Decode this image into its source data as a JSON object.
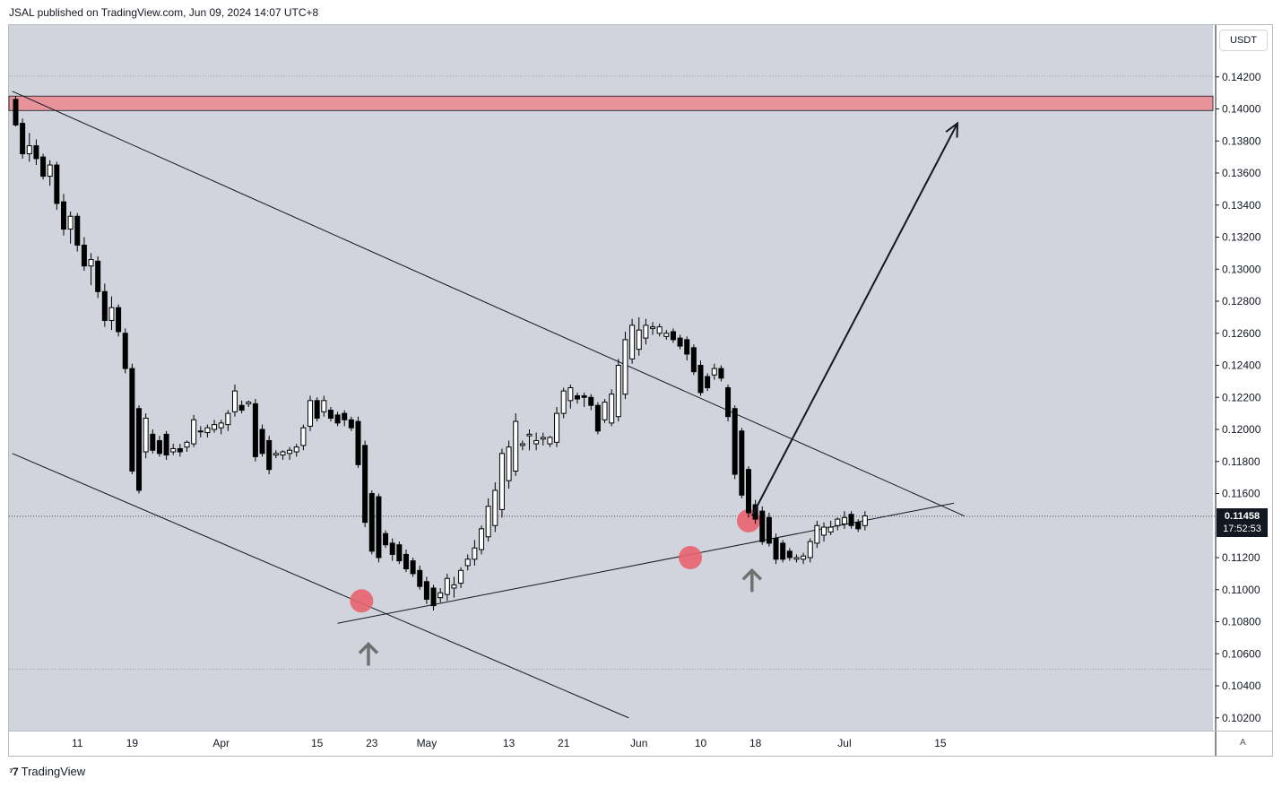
{
  "header": {
    "text": "JSAL published on TradingView.com, Jun 09, 2024 14:07 UTC+8"
  },
  "brand": {
    "icon": "tradingview-logo-icon",
    "text": "TradingView"
  },
  "axis": {
    "currency": "USDT",
    "last_price": "0.11458",
    "countdown": "17:52:53",
    "auto_label": "A"
  },
  "colors": {
    "background": "#d1d4dc",
    "resistance_zone": "#e8939a",
    "marker": "#e8636f",
    "candle_up": "#ffffff",
    "candle_down": "#000000",
    "arrow_up": "#707070"
  },
  "chart_data": {
    "type": "candlestick",
    "title": "",
    "ylim": [
      0.101,
      0.1452
    ],
    "y_ticks": [
      "0.14200",
      "0.14000",
      "0.13800",
      "0.13600",
      "0.13400",
      "0.13200",
      "0.13000",
      "0.12800",
      "0.12600",
      "0.12400",
      "0.12200",
      "0.12000",
      "0.11800",
      "0.11600",
      "0.11200",
      "0.11000",
      "0.10800",
      "0.10600",
      "0.10400",
      "0.10200"
    ],
    "x_ticks": [
      {
        "label": "11",
        "day": 9
      },
      {
        "label": "19",
        "day": 17
      },
      {
        "label": "Apr",
        "day": 30
      },
      {
        "label": "15",
        "day": 44
      },
      {
        "label": "23",
        "day": 52
      },
      {
        "label": "May",
        "day": 60
      },
      {
        "label": "13",
        "day": 72
      },
      {
        "label": "21",
        "day": 80
      },
      {
        "label": "Jun",
        "day": 91
      },
      {
        "label": "10",
        "day": 100
      },
      {
        "label": "18",
        "day": 108
      },
      {
        "label": "Jul",
        "day": 121
      },
      {
        "label": "15",
        "day": 135
      }
    ],
    "candles": [
      [
        0.1406,
        0.1408,
        0.1389,
        0.139
      ],
      [
        0.1391,
        0.1394,
        0.1369,
        0.1372
      ],
      [
        0.1372,
        0.1385,
        0.1367,
        0.1377
      ],
      [
        0.1377,
        0.1381,
        0.1365,
        0.1369
      ],
      [
        0.137,
        0.1372,
        0.1356,
        0.1358
      ],
      [
        0.1358,
        0.1368,
        0.1352,
        0.1365
      ],
      [
        0.1365,
        0.1367,
        0.1337,
        0.1341
      ],
      [
        0.1342,
        0.1347,
        0.1321,
        0.1325
      ],
      [
        0.1325,
        0.1336,
        0.1316,
        0.1333
      ],
      [
        0.1333,
        0.1335,
        0.1311,
        0.1315
      ],
      [
        0.1315,
        0.132,
        0.1299,
        0.1302
      ],
      [
        0.1302,
        0.131,
        0.129,
        0.1306
      ],
      [
        0.1305,
        0.1308,
        0.1282,
        0.1286
      ],
      [
        0.1286,
        0.1291,
        0.1264,
        0.1268
      ],
      [
        0.1268,
        0.1283,
        0.1262,
        0.1276
      ],
      [
        0.1276,
        0.1278,
        0.1258,
        0.1261
      ],
      [
        0.126,
        0.1263,
        0.1235,
        0.1238
      ],
      [
        0.1238,
        0.1241,
        0.1172,
        0.1174
      ],
      [
        0.1213,
        0.1215,
        0.116,
        0.1162
      ],
      [
        0.1186,
        0.121,
        0.1182,
        0.1207
      ],
      [
        0.1197,
        0.12,
        0.1185,
        0.1187
      ],
      [
        0.1193,
        0.1196,
        0.1183,
        0.1185
      ],
      [
        0.1197,
        0.1199,
        0.1181,
        0.1184
      ],
      [
        0.1186,
        0.1191,
        0.1184,
        0.1188
      ],
      [
        0.1188,
        0.1191,
        0.1183,
        0.1186
      ],
      [
        0.1189,
        0.1193,
        0.1186,
        0.1192
      ],
      [
        0.1191,
        0.1209,
        0.1189,
        0.1206
      ],
      [
        0.1199,
        0.1202,
        0.1195,
        0.1199
      ],
      [
        0.1198,
        0.1203,
        0.1195,
        0.1201
      ],
      [
        0.12,
        0.1206,
        0.1198,
        0.1203
      ],
      [
        0.1201,
        0.1206,
        0.1197,
        0.1204
      ],
      [
        0.1203,
        0.1212,
        0.1199,
        0.121
      ],
      [
        0.1211,
        0.1228,
        0.1208,
        0.1224
      ],
      [
        0.1215,
        0.1218,
        0.121,
        0.1212
      ],
      [
        0.1216,
        0.1218,
        0.1214,
        0.1217
      ],
      [
        0.1216,
        0.1219,
        0.118,
        0.1183
      ],
      [
        0.12,
        0.1203,
        0.1183,
        0.1185
      ],
      [
        0.1193,
        0.1196,
        0.1172,
        0.1175
      ],
      [
        0.1184,
        0.1187,
        0.1182,
        0.1185
      ],
      [
        0.1184,
        0.1187,
        0.1181,
        0.1186
      ],
      [
        0.1185,
        0.1189,
        0.1181,
        0.1187
      ],
      [
        0.1186,
        0.1191,
        0.1183,
        0.1189
      ],
      [
        0.119,
        0.1203,
        0.1187,
        0.1201
      ],
      [
        0.1202,
        0.1221,
        0.1199,
        0.1218
      ],
      [
        0.1218,
        0.122,
        0.1205,
        0.1207
      ],
      [
        0.1211,
        0.1221,
        0.1208,
        0.1218
      ],
      [
        0.1212,
        0.1214,
        0.1205,
        0.1207
      ],
      [
        0.1209,
        0.1211,
        0.1202,
        0.1204
      ],
      [
        0.121,
        0.1212,
        0.1202,
        0.1206
      ],
      [
        0.1206,
        0.1208,
        0.1199,
        0.1201
      ],
      [
        0.1205,
        0.1208,
        0.1176,
        0.1178
      ],
      [
        0.119,
        0.1193,
        0.1139,
        0.1142
      ],
      [
        0.116,
        0.1162,
        0.1122,
        0.1124
      ],
      [
        0.1158,
        0.116,
        0.1117,
        0.112
      ],
      [
        0.1135,
        0.1137,
        0.1126,
        0.1128
      ],
      [
        0.1129,
        0.1132,
        0.1118,
        0.1122
      ],
      [
        0.1128,
        0.113,
        0.1116,
        0.1118
      ],
      [
        0.1122,
        0.1125,
        0.1111,
        0.1113
      ],
      [
        0.1118,
        0.112,
        0.1108,
        0.111
      ],
      [
        0.1112,
        0.1115,
        0.11,
        0.1102
      ],
      [
        0.1105,
        0.1108,
        0.1091,
        0.1094
      ],
      [
        0.1101,
        0.1103,
        0.1087,
        0.109
      ],
      [
        0.1095,
        0.1101,
        0.1092,
        0.1098
      ],
      [
        0.1097,
        0.111,
        0.1093,
        0.1107
      ],
      [
        0.1101,
        0.1108,
        0.1095,
        0.1103
      ],
      [
        0.1104,
        0.1114,
        0.1101,
        0.1112
      ],
      [
        0.1115,
        0.1122,
        0.1112,
        0.1119
      ],
      [
        0.1119,
        0.1131,
        0.1115,
        0.1126
      ],
      [
        0.1125,
        0.114,
        0.1122,
        0.1138
      ],
      [
        0.1133,
        0.1157,
        0.113,
        0.1152
      ],
      [
        0.114,
        0.1167,
        0.1136,
        0.1162
      ],
      [
        0.115,
        0.1188,
        0.1145,
        0.1185
      ],
      [
        0.1168,
        0.1193,
        0.1163,
        0.1189
      ],
      [
        0.1174,
        0.121,
        0.1171,
        0.1205
      ],
      [
        0.119,
        0.1193,
        0.1187,
        0.1191
      ],
      [
        0.1196,
        0.12,
        0.1187,
        0.1197
      ],
      [
        0.1191,
        0.1198,
        0.1187,
        0.1193
      ],
      [
        0.1194,
        0.1198,
        0.119,
        0.1195
      ],
      [
        0.1191,
        0.1196,
        0.1189,
        0.1195
      ],
      [
        0.1192,
        0.1214,
        0.1189,
        0.121
      ],
      [
        0.121,
        0.1226,
        0.1207,
        0.1224
      ],
      [
        0.1218,
        0.1228,
        0.1213,
        0.1226
      ],
      [
        0.1221,
        0.1223,
        0.1216,
        0.1219
      ],
      [
        0.1221,
        0.1223,
        0.1214,
        0.122
      ],
      [
        0.122,
        0.1222,
        0.1212,
        0.1215
      ],
      [
        0.1215,
        0.1217,
        0.1197,
        0.1199
      ],
      [
        0.1206,
        0.1219,
        0.1204,
        0.1217
      ],
      [
        0.1204,
        0.1225,
        0.1202,
        0.1222
      ],
      [
        0.1208,
        0.1244,
        0.1205,
        0.124
      ],
      [
        0.1222,
        0.1261,
        0.1219,
        0.1256
      ],
      [
        0.1244,
        0.1269,
        0.1241,
        0.1265
      ],
      [
        0.125,
        0.127,
        0.1246,
        0.1262
      ],
      [
        0.1257,
        0.1269,
        0.1253,
        0.1265
      ],
      [
        0.1263,
        0.1267,
        0.1259,
        0.1264
      ],
      [
        0.126,
        0.1266,
        0.1258,
        0.1264
      ],
      [
        0.1258,
        0.1262,
        0.1256,
        0.126
      ],
      [
        0.1261,
        0.1263,
        0.1254,
        0.1256
      ],
      [
        0.1257,
        0.1259,
        0.125,
        0.1252
      ],
      [
        0.1256,
        0.1258,
        0.1243,
        0.1247
      ],
      [
        0.1251,
        0.1253,
        0.1234,
        0.1236
      ],
      [
        0.124,
        0.1243,
        0.1221,
        0.1223
      ],
      [
        0.1233,
        0.1235,
        0.1224,
        0.1226
      ],
      [
        0.1234,
        0.1241,
        0.1231,
        0.1238
      ],
      [
        0.1238,
        0.124,
        0.123,
        0.1232
      ],
      [
        0.1226,
        0.1228,
        0.1205,
        0.1208
      ],
      [
        0.1213,
        0.1215,
        0.1169,
        0.1172
      ],
      [
        0.1199,
        0.1201,
        0.1157,
        0.1159
      ],
      [
        0.1175,
        0.1177,
        0.1145,
        0.1148
      ],
      [
        0.1153,
        0.1156,
        0.1141,
        0.1144
      ],
      [
        0.1149,
        0.1152,
        0.1128,
        0.113
      ],
      [
        0.1145,
        0.1148,
        0.1127,
        0.1129
      ],
      [
        0.1132,
        0.1135,
        0.1116,
        0.1119
      ],
      [
        0.1129,
        0.1131,
        0.1117,
        0.1119
      ],
      [
        0.1124,
        0.1126,
        0.1118,
        0.112
      ],
      [
        0.1119,
        0.1122,
        0.1117,
        0.112
      ],
      [
        0.1119,
        0.1123,
        0.1116,
        0.1121
      ],
      [
        0.112,
        0.1132,
        0.1117,
        0.113
      ],
      [
        0.1129,
        0.1143,
        0.1126,
        0.114
      ],
      [
        0.1134,
        0.1142,
        0.113,
        0.1139
      ],
      [
        0.1136,
        0.1143,
        0.1134,
        0.1139
      ],
      [
        0.114,
        0.1145,
        0.1137,
        0.1144
      ],
      [
        0.1141,
        0.1149,
        0.1138,
        0.1145
      ],
      [
        0.1147,
        0.1149,
        0.1138,
        0.114
      ],
      [
        0.1142,
        0.1144,
        0.1136,
        0.1138
      ],
      [
        0.114,
        0.1149,
        0.1137,
        0.1146
      ]
    ],
    "resistance_zone": [
      0.1399,
      0.1408
    ],
    "trendlines": [
      {
        "name": "upper-descending",
        "from": [
          -0.5,
          0.1411
        ],
        "to": [
          138.5,
          0.1146
        ]
      },
      {
        "name": "lower-descending",
        "from": [
          -0.5,
          0.1185
        ],
        "to": [
          89.5,
          0.102
        ]
      },
      {
        "name": "rising-support",
        "from": [
          47.0,
          0.1079
        ],
        "to": [
          137.0,
          0.1154
        ]
      }
    ],
    "projection_arrow": {
      "from": [
        107.5,
        0.1146
      ],
      "to": [
        137.5,
        0.1391
      ]
    },
    "markers": [
      {
        "day": 50.5,
        "price": 0.1093
      },
      {
        "day": 98.5,
        "price": 0.112
      },
      {
        "day": 107.0,
        "price": 0.1143
      }
    ],
    "up_arrows": [
      {
        "day": 51.5,
        "price": 0.1066
      },
      {
        "day": 107.5,
        "price": 0.1112
      }
    ],
    "hlines": [
      0.14204,
      0.10503
    ]
  }
}
